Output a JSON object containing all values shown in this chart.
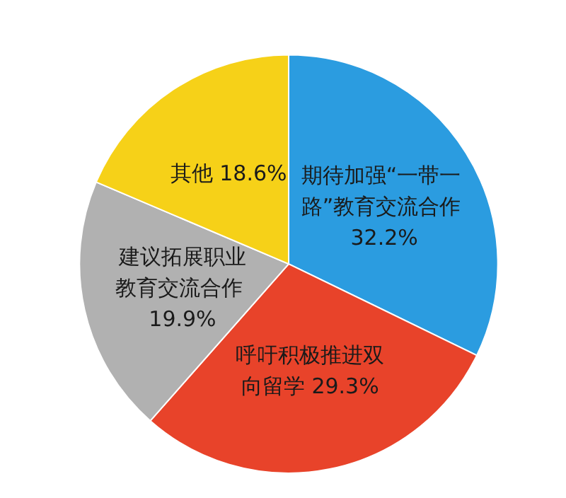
{
  "chart_data": {
    "type": "pie",
    "categories": [
      "期待加强“一带一路”教育交流合作",
      "呼吁积极推进双向留学",
      "建议拓展职业教育交流合作",
      "其他"
    ],
    "values": [
      32.2,
      29.3,
      19.9,
      18.6
    ],
    "colors": [
      "#2b9ce0",
      "#e8432a",
      "#b1b1b1",
      "#f6d118"
    ],
    "value_labels": [
      "32.2%",
      "29.3%",
      "19.9%",
      "18.6%"
    ]
  }
}
